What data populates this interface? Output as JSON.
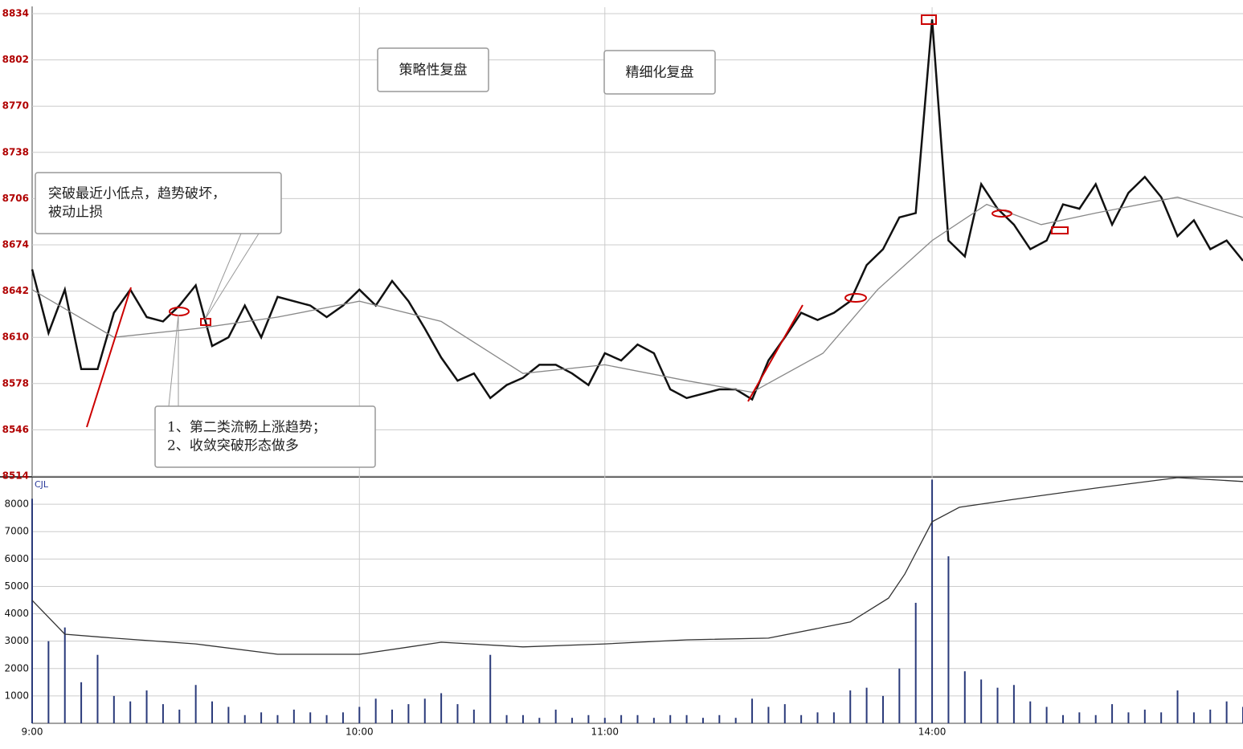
{
  "chart_data": [
    {
      "type": "line",
      "ylim": [
        8514,
        8834
      ],
      "yticks": [
        8514,
        8546,
        8578,
        8610,
        8642,
        8674,
        8706,
        8738,
        8770,
        8802,
        8834
      ],
      "xlim": [
        0,
        222
      ],
      "xticks": [
        {
          "value": 0,
          "label": "9:00"
        },
        {
          "value": 60,
          "label": "10:00"
        },
        {
          "value": 105,
          "label": "11:00"
        },
        {
          "value": 165,
          "label": "14:00"
        }
      ],
      "grid": true,
      "tick_color": "#b00000",
      "series": [
        {
          "color": "#111111",
          "x": [
            0,
            3,
            6,
            9,
            12,
            15,
            18,
            21,
            24,
            27,
            30,
            33,
            36,
            39,
            42,
            45,
            48,
            51,
            54,
            57,
            60,
            63,
            66,
            69,
            72,
            75,
            78,
            81,
            84,
            87,
            90,
            93,
            96,
            99,
            102,
            105,
            108,
            111,
            114,
            117,
            120,
            123,
            126,
            129,
            132,
            135,
            138,
            141,
            144,
            147,
            150,
            153,
            156,
            159,
            162,
            165,
            168,
            171,
            174,
            177,
            180,
            183,
            186,
            189,
            192,
            195,
            198,
            201,
            204,
            207,
            210,
            213,
            216,
            219,
            222
          ],
          "values": [
            8657,
            8613,
            8643,
            8588,
            8588,
            8627,
            8643,
            8624,
            8621,
            8632,
            8646,
            8604,
            8610,
            8632,
            8610,
            8638,
            8635,
            8632,
            8624,
            8632,
            8643,
            8632,
            8649,
            8635,
            8616,
            8596,
            8580,
            8585,
            8568,
            8577,
            8582,
            8591,
            8591,
            8585,
            8577,
            8599,
            8594,
            8605,
            8599,
            8574,
            8568,
            8571,
            8574,
            8574,
            8567,
            8594,
            8610,
            8627,
            8622,
            8627,
            8635,
            8660,
            8671,
            8693,
            8696,
            8830,
            8677,
            8666,
            8716,
            8699,
            8688,
            8671,
            8677,
            8702,
            8699,
            8716,
            8688,
            8710,
            8721,
            8707,
            8680,
            8691,
            8671,
            8677,
            8663
          ]
        },
        {
          "color": "#888888",
          "x": [
            0,
            15,
            30,
            45,
            60,
            75,
            90,
            105,
            120,
            132,
            145,
            155,
            165,
            175,
            185,
            195,
            210,
            222
          ],
          "values": [
            8643,
            8610,
            8616,
            8624,
            8635,
            8621,
            8585,
            8591,
            8580,
            8572,
            8599,
            8643,
            8677,
            8702,
            8688,
            8696,
            8707,
            8693
          ]
        }
      ],
      "annotations": [
        {
          "text": "策略性复盘"
        },
        {
          "text": "精细化复盘"
        },
        {
          "text": "突破最近小低点，趋势破坏，"
        },
        {
          "text": "被动止损"
        },
        {
          "text": "1、第二类流畅上涨趋势；"
        },
        {
          "text": "2、收敛突破形态做多"
        }
      ]
    },
    {
      "type": "bar",
      "title": "CJL",
      "ylim": [
        0,
        9000
      ],
      "yticks": [
        1000,
        2000,
        3000,
        4000,
        5000,
        6000,
        7000,
        8000
      ],
      "xlim": [
        0,
        222
      ],
      "grid": true,
      "series": [
        {
          "color": "#2a3a7a",
          "x": [
            0,
            3,
            6,
            9,
            12,
            15,
            18,
            21,
            24,
            27,
            30,
            33,
            36,
            39,
            42,
            45,
            48,
            51,
            54,
            57,
            60,
            63,
            66,
            69,
            72,
            75,
            78,
            81,
            84,
            87,
            90,
            93,
            96,
            99,
            102,
            105,
            108,
            111,
            114,
            117,
            120,
            123,
            126,
            129,
            132,
            135,
            138,
            141,
            144,
            147,
            150,
            153,
            156,
            159,
            162,
            165,
            168,
            171,
            174,
            177,
            180,
            183,
            186,
            189,
            192,
            195,
            198,
            201,
            204,
            207,
            210,
            213,
            216,
            219,
            222
          ],
          "values": [
            8200,
            3000,
            3500,
            1500,
            2500,
            1000,
            800,
            1200,
            700,
            500,
            1400,
            800,
            600,
            300,
            400,
            300,
            500,
            400,
            300,
            400,
            600,
            900,
            500,
            700,
            900,
            1100,
            700,
            500,
            2500,
            300,
            300,
            200,
            500,
            200,
            300,
            200,
            300,
            300,
            200,
            300,
            300,
            200,
            300,
            200,
            900,
            600,
            700,
            300,
            400,
            400,
            1200,
            1300,
            1000,
            2000,
            4400,
            8900,
            6100,
            1900,
            1600,
            1300,
            1400,
            800,
            600,
            300,
            400,
            300,
            700,
            400,
            500,
            400,
            1200,
            400,
            500,
            800,
            600
          ]
        },
        {
          "type": "line",
          "color": "#333333",
          "x": [
            0,
            6,
            15,
            30,
            45,
            60,
            75,
            90,
            105,
            120,
            135,
            150,
            157,
            160,
            165,
            170,
            180,
            195,
            210,
            222
          ],
          "values": [
            4490,
            3255,
            3110,
            2900,
            2520,
            2520,
            2960,
            2790,
            2900,
            3050,
            3110,
            3700,
            4570,
            5450,
            7360,
            7890,
            8180,
            8590,
            8970,
            8830
          ]
        }
      ]
    }
  ]
}
